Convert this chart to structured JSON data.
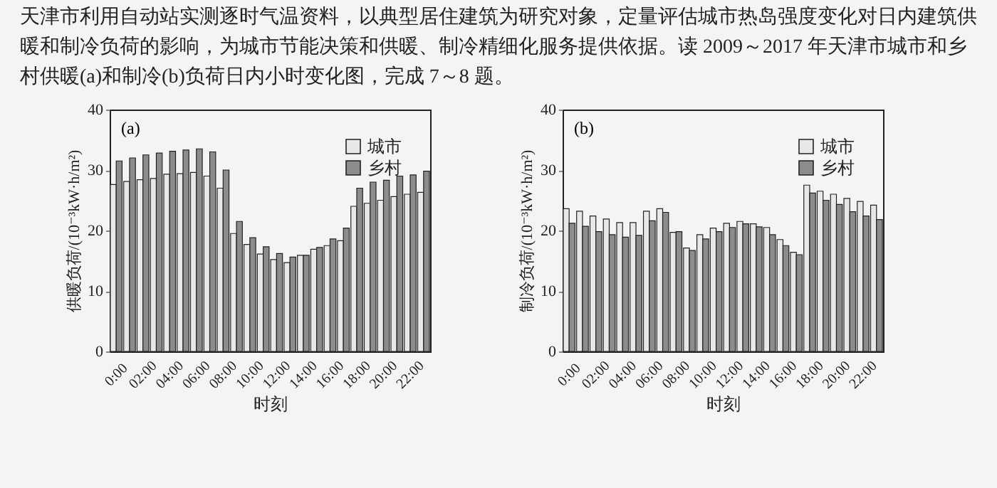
{
  "chart_data": [
    {
      "type": "bar",
      "annotations": [
        "天津市利用自动站实测逐时气温资料，以典型居住建筑为研究对象，定量评估城市热岛强度变化对日内建筑供暖和制冷负荷的影响，为城市节能决策和供暖、制冷精细化服务提供依据。读 2009～2017 年天津市城市和乡村供暖(a)和制冷(b)负荷日内小时变化图，完成 7～8 题。",
        "(a)"
      ],
      "xlabel": "时刻",
      "ylabel": "供暖负荷/(10⁻³kW·h/m²)",
      "categories": [
        "0:00",
        null,
        "02:00",
        null,
        "04:00",
        null,
        "06:00",
        null,
        "08:00",
        null,
        "10:00",
        null,
        "12:00",
        null,
        "14:00",
        null,
        "16:00",
        null,
        "18:00",
        null,
        "20:00",
        null,
        "22:00",
        null
      ],
      "series": [
        {
          "name": "城市",
          "color": "#e8e8e8",
          "values": [
            27.6,
            28.1,
            28.4,
            28.6,
            29.3,
            29.4,
            29.6,
            29.0,
            27.0,
            19.5,
            17.7,
            16.1,
            15.2,
            14.7,
            15.9,
            16.9,
            17.5,
            18.3,
            24.0,
            24.5,
            25.0,
            25.6,
            26.0,
            26.3
          ]
        },
        {
          "name": "乡村",
          "color": "#8c8c8c",
          "values": [
            31.5,
            32.0,
            32.5,
            32.8,
            33.1,
            33.3,
            33.5,
            33.0,
            30.0,
            21.5,
            18.8,
            17.3,
            16.2,
            15.6,
            15.9,
            17.2,
            18.6,
            20.4,
            27.0,
            28.0,
            28.3,
            29.0,
            29.2,
            29.8
          ]
        }
      ],
      "ylim": [
        0,
        40
      ],
      "yticks": [
        0,
        10,
        20,
        30,
        40
      ],
      "grid": false,
      "legend": "top right"
    },
    {
      "type": "bar",
      "annotations": [
        "(b)"
      ],
      "xlabel": "时刻",
      "ylabel": "制冷负荷/(10⁻³kW·h/m²)",
      "categories": [
        "0:00",
        null,
        "02:00",
        null,
        "04:00",
        null,
        "06:00",
        null,
        "08:00",
        null,
        "10:00",
        null,
        "12:00",
        null,
        "14:00",
        null,
        "16:00",
        null,
        "18:00",
        null,
        "20:00",
        null,
        "22:00",
        null
      ],
      "series": [
        {
          "name": "城市",
          "color": "#e8e8e8",
          "values": [
            23.6,
            23.2,
            22.4,
            21.9,
            21.3,
            21.3,
            23.2,
            23.6,
            19.7,
            17.1,
            19.3,
            20.4,
            21.2,
            21.5,
            21.1,
            20.5,
            18.5,
            16.4,
            27.5,
            26.5,
            26.0,
            25.3,
            24.8,
            24.2
          ]
        },
        {
          "name": "乡村",
          "color": "#8c8c8c",
          "values": [
            21.2,
            20.7,
            19.8,
            19.3,
            18.9,
            19.2,
            21.6,
            23.0,
            19.8,
            16.7,
            18.6,
            19.8,
            20.5,
            21.1,
            20.6,
            19.3,
            17.5,
            16.0,
            26.2,
            25.0,
            24.3,
            23.1,
            22.4,
            21.8
          ]
        }
      ],
      "ylim": [
        0,
        40
      ],
      "yticks": [
        0,
        10,
        20,
        30,
        40
      ],
      "grid": false,
      "legend": "top right"
    }
  ]
}
